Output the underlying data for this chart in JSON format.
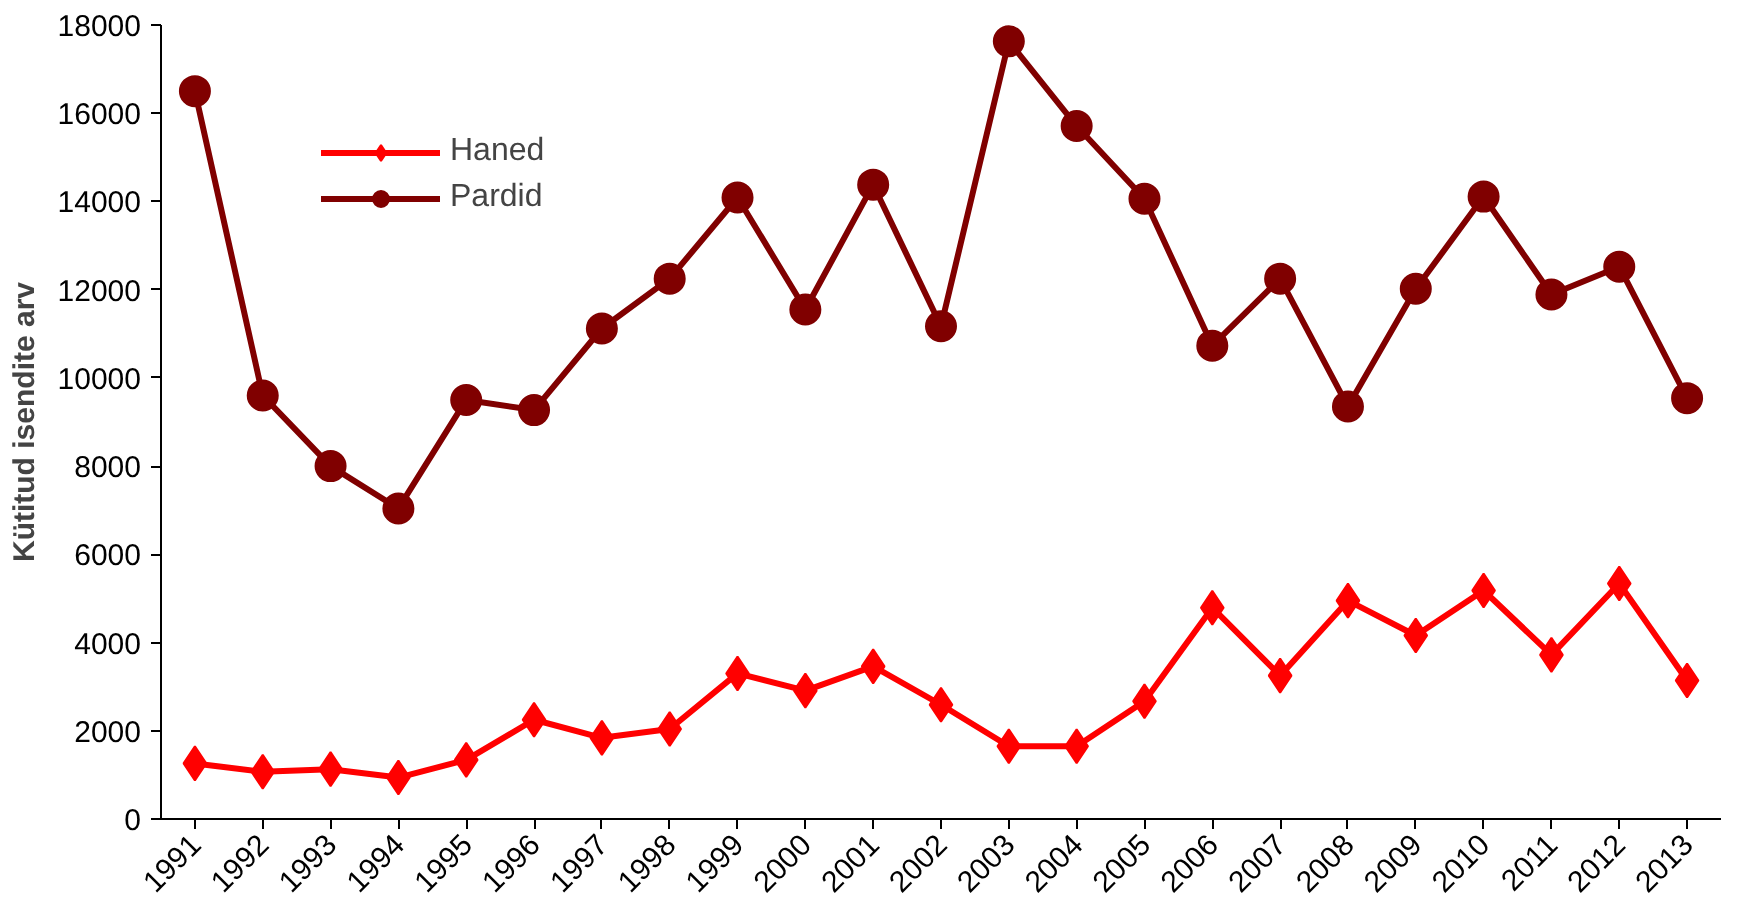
{
  "chart_data": {
    "type": "line",
    "ylabel": "Kütitud isendite arv",
    "categories": [
      "1991",
      "1992",
      "1993",
      "1994",
      "1995",
      "1996",
      "1997",
      "1998",
      "1999",
      "2000",
      "2001",
      "2002",
      "2003",
      "2004",
      "2005",
      "2006",
      "2007",
      "2008",
      "2009",
      "2010",
      "2011",
      "2012",
      "2013"
    ],
    "series": [
      {
        "name": "Haned",
        "color": "#ff0000",
        "marker": "diamond",
        "values": [
          1260,
          1070,
          1130,
          940,
          1340,
          2250,
          1840,
          2040,
          3300,
          2910,
          3460,
          2590,
          1650,
          1650,
          2670,
          4790,
          3250,
          4950,
          4160,
          5180,
          3720,
          5340,
          3140
        ]
      },
      {
        "name": "Pardid",
        "color": "#800000",
        "marker": "circle",
        "values": [
          16500,
          9600,
          8000,
          7040,
          9500,
          9270,
          11120,
          12250,
          14090,
          11550,
          14380,
          11170,
          17630,
          15710,
          14060,
          10730,
          12250,
          9350,
          12020,
          14110,
          11890,
          12520,
          9540
        ]
      }
    ],
    "ylim": [
      0,
      18000
    ],
    "yticks": [
      0,
      2000,
      4000,
      6000,
      8000,
      10000,
      12000,
      14000,
      16000,
      18000
    ],
    "grid": false,
    "legend": "top left",
    "line_style": "solid"
  }
}
